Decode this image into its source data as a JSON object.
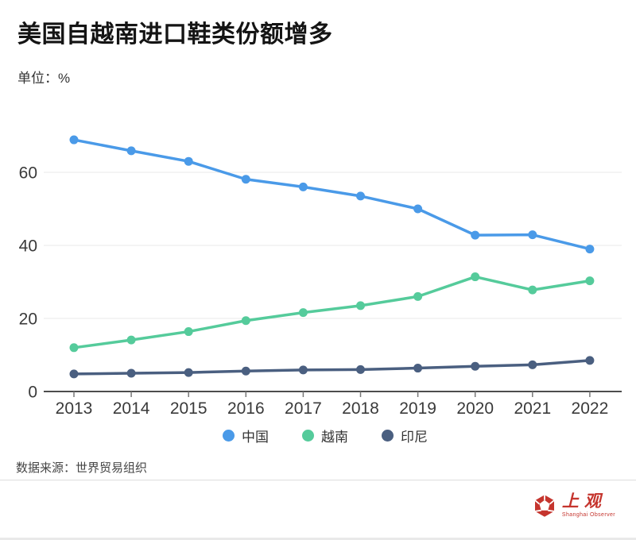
{
  "header": {
    "title": "美国自越南进口鞋类份额增多",
    "unit_label": "单位：%"
  },
  "footer": {
    "source": "数据来源：世界贸易组织"
  },
  "logo": {
    "name_cn": "上观",
    "name_en": "Shanghai Observer",
    "color": "#c5352e"
  },
  "style": {
    "accent_blue": "#4a9ae8",
    "accent_green": "#55cb9b",
    "accent_navy": "#4a5f80",
    "grid_color": "#e9e9e9",
    "axis_color": "#4d4d4d",
    "tick_color": "#777777",
    "label_color": "#3a3a3a"
  },
  "chart_data": {
    "type": "line",
    "title": "美国自越南进口鞋类份额增多",
    "unit": "%",
    "x": [
      "2013",
      "2014",
      "2015",
      "2016",
      "2017",
      "2018",
      "2019",
      "2020",
      "2021",
      "2022"
    ],
    "series": [
      {
        "name": "中国",
        "color": "#4a9ae8",
        "values": [
          68.9,
          65.9,
          63.0,
          58.1,
          56.0,
          53.5,
          50.0,
          42.8,
          42.9,
          39.0
        ]
      },
      {
        "name": "越南",
        "color": "#55cb9b",
        "values": [
          12.0,
          14.1,
          16.4,
          19.4,
          21.6,
          23.5,
          26.0,
          31.4,
          27.8,
          30.3
        ]
      },
      {
        "name": "印尼",
        "color": "#4a5f80",
        "values": [
          4.8,
          5.0,
          5.2,
          5.6,
          5.9,
          6.0,
          6.4,
          6.9,
          7.3,
          8.5
        ]
      }
    ],
    "ylim": [
      0,
      72
    ],
    "yticks": [
      0,
      20,
      40,
      60
    ],
    "grid": true,
    "legend_position": "bottom",
    "source": "世界贸易组织"
  }
}
